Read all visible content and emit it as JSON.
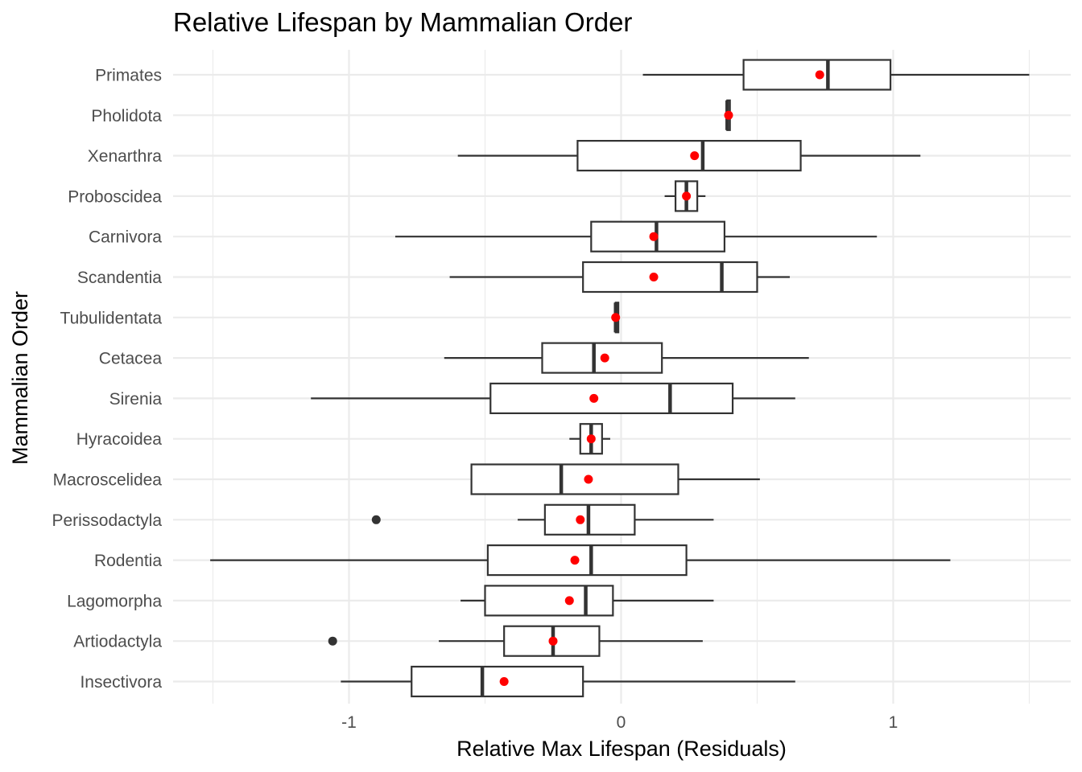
{
  "chart_data": {
    "type": "boxplot",
    "orientation": "horizontal",
    "title": "Relative Lifespan by Mammalian Order",
    "xlabel": "Relative Max Lifespan (Residuals)",
    "ylabel": "Mammalian Order",
    "xlim": [
      -1.64,
      1.64
    ],
    "x_ticks": [
      -1,
      0,
      1
    ],
    "x_tick_labels": [
      "-1",
      "0",
      "1"
    ],
    "grid": true,
    "mean_marker_color": "#ff0000",
    "box_color": "#333333",
    "categories": [
      "Primates",
      "Pholidota",
      "Xenarthra",
      "Proboscidea",
      "Carnivora",
      "Scandentia",
      "Tubulidentata",
      "Cetacea",
      "Sirenia",
      "Hyracoidea",
      "Macroscelidea",
      "Perissodactyla",
      "Rodentia",
      "Lagomorpha",
      "Artiodactyla",
      "Insectivora"
    ],
    "series": [
      {
        "category": "Primates",
        "whisker_low": 0.08,
        "q1": 0.45,
        "median": 0.76,
        "q3": 0.99,
        "whisker_high": 1.5,
        "mean": 0.73,
        "outliers": []
      },
      {
        "category": "Pholidota",
        "whisker_low": 0.39,
        "q1": 0.39,
        "median": 0.39,
        "q3": 0.4,
        "whisker_high": 0.4,
        "mean": 0.395,
        "outliers": []
      },
      {
        "category": "Xenarthra",
        "whisker_low": -0.6,
        "q1": -0.16,
        "median": 0.3,
        "q3": 0.66,
        "whisker_high": 1.1,
        "mean": 0.27,
        "outliers": []
      },
      {
        "category": "Proboscidea",
        "whisker_low": 0.16,
        "q1": 0.2,
        "median": 0.24,
        "q3": 0.28,
        "whisker_high": 0.31,
        "mean": 0.24,
        "outliers": []
      },
      {
        "category": "Carnivora",
        "whisker_low": -0.83,
        "q1": -0.11,
        "median": 0.13,
        "q3": 0.38,
        "whisker_high": 0.94,
        "mean": 0.12,
        "outliers": []
      },
      {
        "category": "Scandentia",
        "whisker_low": -0.63,
        "q1": -0.14,
        "median": 0.37,
        "q3": 0.5,
        "whisker_high": 0.62,
        "mean": 0.12,
        "outliers": []
      },
      {
        "category": "Tubulidentata",
        "whisker_low": -0.02,
        "q1": -0.02,
        "median": -0.02,
        "q3": -0.01,
        "whisker_high": -0.01,
        "mean": -0.02,
        "outliers": []
      },
      {
        "category": "Cetacea",
        "whisker_low": -0.65,
        "q1": -0.29,
        "median": -0.1,
        "q3": 0.15,
        "whisker_high": 0.69,
        "mean": -0.06,
        "outliers": []
      },
      {
        "category": "Sirenia",
        "whisker_low": -1.14,
        "q1": -0.48,
        "median": 0.18,
        "q3": 0.41,
        "whisker_high": 0.64,
        "mean": -0.1,
        "outliers": []
      },
      {
        "category": "Hyracoidea",
        "whisker_low": -0.19,
        "q1": -0.15,
        "median": -0.11,
        "q3": -0.07,
        "whisker_high": -0.04,
        "mean": -0.11,
        "outliers": []
      },
      {
        "category": "Macroscelidea",
        "whisker_low": -0.55,
        "q1": -0.55,
        "median": -0.22,
        "q3": 0.21,
        "whisker_high": 0.51,
        "mean": -0.12,
        "outliers": []
      },
      {
        "category": "Perissodactyla",
        "whisker_low": -0.38,
        "q1": -0.28,
        "median": -0.12,
        "q3": 0.05,
        "whisker_high": 0.34,
        "mean": -0.15,
        "outliers": [
          -0.9
        ]
      },
      {
        "category": "Rodentia",
        "whisker_low": -1.51,
        "q1": -0.49,
        "median": -0.11,
        "q3": 0.24,
        "whisker_high": 1.21,
        "mean": -0.17,
        "outliers": []
      },
      {
        "category": "Lagomorpha",
        "whisker_low": -0.59,
        "q1": -0.5,
        "median": -0.13,
        "q3": -0.03,
        "whisker_high": 0.34,
        "mean": -0.19,
        "outliers": []
      },
      {
        "category": "Artiodactyla",
        "whisker_low": -0.67,
        "q1": -0.43,
        "median": -0.25,
        "q3": -0.08,
        "whisker_high": 0.3,
        "mean": -0.25,
        "outliers": [
          -1.06
        ]
      },
      {
        "category": "Insectivora",
        "whisker_low": -1.03,
        "q1": -0.77,
        "median": -0.51,
        "q3": -0.14,
        "whisker_high": 0.64,
        "mean": -0.43,
        "outliers": []
      }
    ]
  }
}
